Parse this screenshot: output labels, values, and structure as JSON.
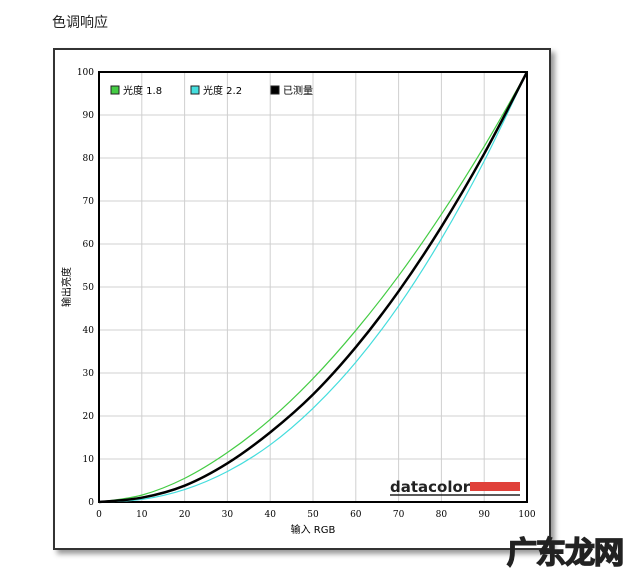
{
  "page_title": "色调响应",
  "watermark": "广东龙网",
  "logo_text": "datacolor",
  "chart_data": {
    "type": "line",
    "title": "",
    "xlabel": "输入 RGB",
    "ylabel": "输出亮度",
    "xlim": [
      0,
      100
    ],
    "ylim": [
      0,
      100
    ],
    "xticks": [
      0,
      10,
      20,
      30,
      40,
      50,
      60,
      70,
      80,
      90,
      100
    ],
    "yticks": [
      0,
      10,
      20,
      30,
      40,
      50,
      60,
      70,
      80,
      90,
      100
    ],
    "grid": true,
    "legend_placement": "top-left",
    "x": [
      0,
      10,
      20,
      30,
      40,
      50,
      60,
      70,
      80,
      90,
      100
    ],
    "series": [
      {
        "name": "光度 1.8",
        "color": "#44cc44",
        "values": [
          0,
          1.6,
          5.5,
          11.5,
          19.2,
          28.7,
          39.9,
          52.6,
          66.9,
          82.7,
          100
        ]
      },
      {
        "name": "光度 2.2",
        "color": "#44dddd",
        "values": [
          0,
          0.6,
          2.9,
          7.1,
          13.3,
          21.8,
          32.5,
          45.6,
          61.2,
          79.3,
          100
        ]
      },
      {
        "name": "已测量",
        "color": "#000000",
        "values": [
          0,
          1.0,
          3.8,
          9.0,
          16.2,
          25.0,
          36.0,
          49.0,
          64.0,
          81.0,
          100
        ]
      }
    ]
  }
}
